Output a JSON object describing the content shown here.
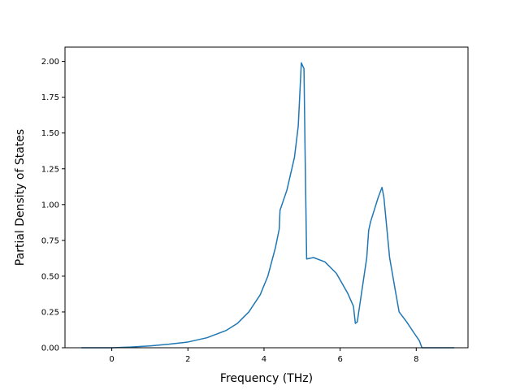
{
  "chart_data": {
    "type": "line",
    "xlabel": "Frequency (THz)",
    "ylabel": "Partial Density of States",
    "xlim": [
      -1.23,
      9.36
    ],
    "ylim": [
      0.0,
      2.1
    ],
    "grid": false,
    "line_color": "#1f77b4",
    "x_ticks": [
      0,
      2,
      4,
      6,
      8
    ],
    "x_tick_labels": [
      "0",
      "2",
      "4",
      "6",
      "8"
    ],
    "y_ticks": [
      0.0,
      0.25,
      0.5,
      0.75,
      1.0,
      1.25,
      1.5,
      1.75,
      2.0
    ],
    "y_tick_labels": [
      "0.00",
      "0.25",
      "0.50",
      "0.75",
      "1.00",
      "1.25",
      "1.50",
      "1.75",
      "2.00"
    ],
    "series": [
      {
        "x": [
          -0.8,
          0.0,
          0.5,
          1.0,
          1.5,
          2.0,
          2.5,
          3.0,
          3.3,
          3.6,
          3.9,
          4.1,
          4.3,
          4.4,
          4.42,
          4.6,
          4.8,
          4.9,
          4.98,
          5.05,
          5.08,
          5.12,
          5.3,
          5.6,
          5.9,
          6.2,
          6.35,
          6.4,
          6.45,
          6.6,
          6.7,
          6.75,
          6.8,
          7.0,
          7.1,
          7.15,
          7.3,
          7.45,
          7.55,
          7.75,
          7.95,
          8.08,
          8.15,
          8.3,
          9.0
        ],
        "y": [
          0.0,
          0.0,
          0.005,
          0.013,
          0.025,
          0.04,
          0.07,
          0.12,
          0.17,
          0.25,
          0.37,
          0.5,
          0.7,
          0.83,
          0.96,
          1.1,
          1.33,
          1.55,
          1.99,
          1.95,
          1.35,
          0.62,
          0.63,
          0.6,
          0.52,
          0.38,
          0.29,
          0.17,
          0.18,
          0.45,
          0.63,
          0.82,
          0.88,
          1.05,
          1.12,
          1.05,
          0.63,
          0.4,
          0.25,
          0.18,
          0.1,
          0.05,
          0.0,
          0.0,
          0.0
        ]
      }
    ]
  }
}
